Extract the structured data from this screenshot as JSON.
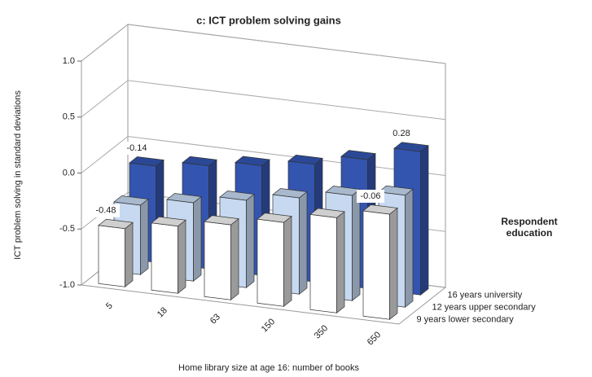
{
  "chart_data": {
    "type": "bar3d",
    "title": "c: ICT problem solving gains",
    "y_label": "ICT problem solving in standard deviations",
    "x_label": "Home library size at age 16: number of books",
    "legend_title": "Respondent education",
    "categories": [
      "5",
      "18",
      "63",
      "150",
      "350",
      "650"
    ],
    "series": [
      {
        "name": "9 years lower secondary",
        "color": "#ffffff",
        "values": [
          -0.48,
          -0.4,
          -0.33,
          -0.25,
          -0.15,
          -0.06
        ],
        "value_labels": [
          "-0.48",
          null,
          null,
          null,
          null,
          "-0.06"
        ]
      },
      {
        "name": "12 years upper secondary",
        "color": "#c6d9f1",
        "values": [
          -0.38,
          -0.3,
          -0.22,
          -0.14,
          -0.06,
          0.0
        ],
        "value_labels": [
          null,
          null,
          null,
          null,
          null,
          null
        ]
      },
      {
        "name": "16 years university",
        "color": "#3355b0",
        "values": [
          -0.14,
          -0.08,
          -0.02,
          0.05,
          0.15,
          0.28
        ],
        "value_labels": [
          "-0.14",
          null,
          null,
          null,
          null,
          "0.28"
        ]
      }
    ],
    "ylim": [
      -1,
      1
    ],
    "yticks": [
      {
        "value": -1,
        "label": "-1.0"
      },
      {
        "value": -0.5,
        "label": "-0.5"
      },
      {
        "value": 0,
        "label": "0.0"
      },
      {
        "value": 0.5,
        "label": "0.5"
      },
      {
        "value": 1,
        "label": "1.0"
      }
    ],
    "grid": true
  }
}
